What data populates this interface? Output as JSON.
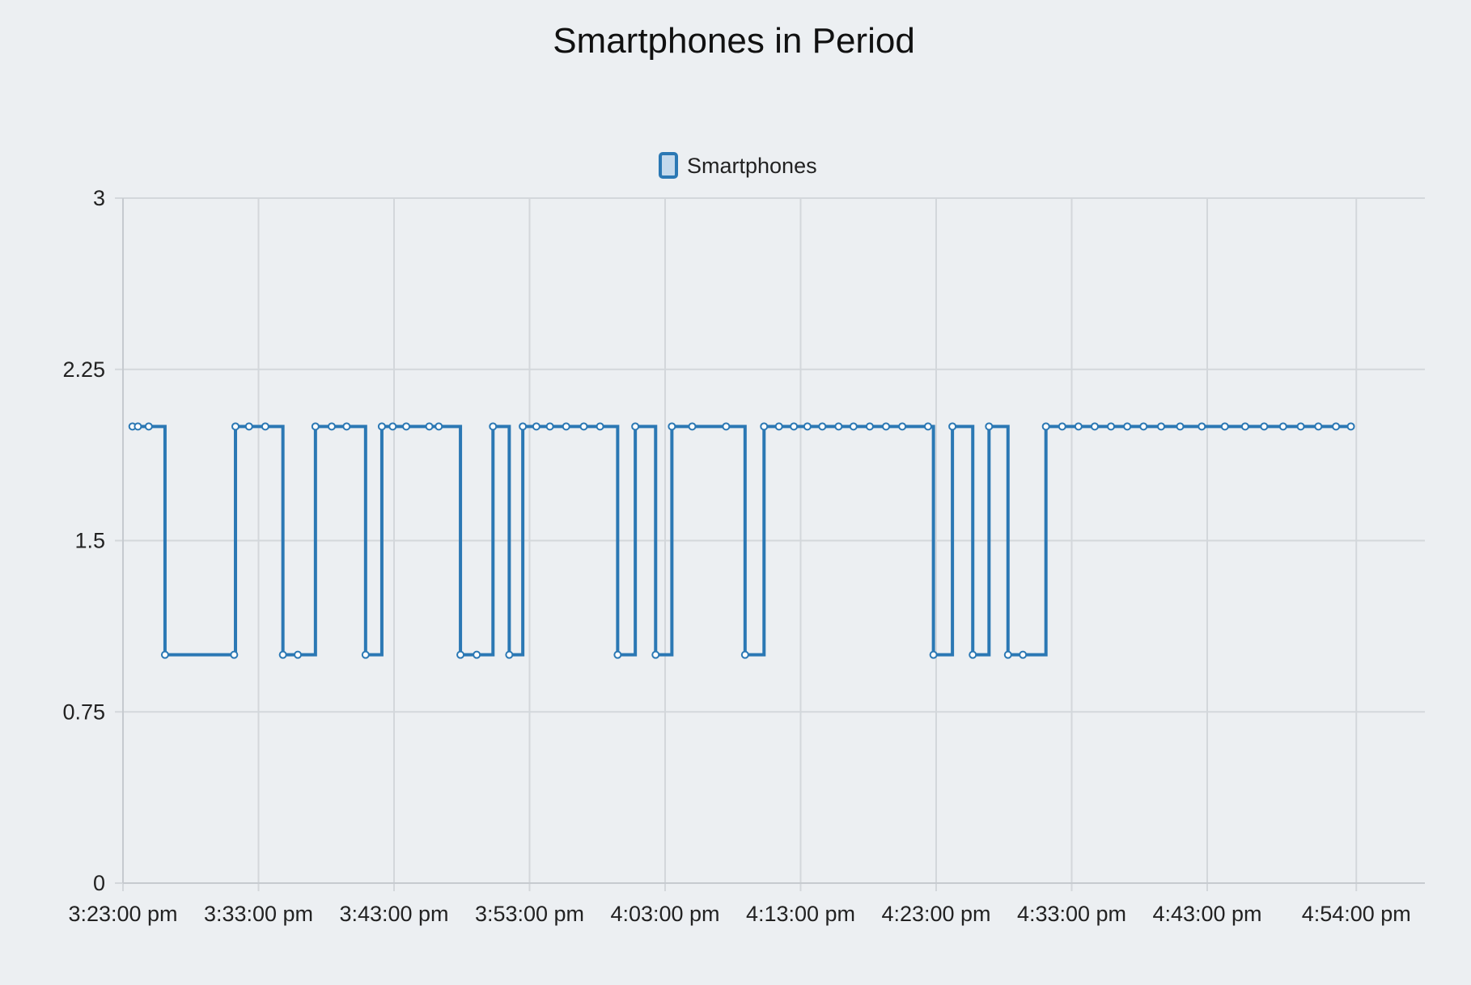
{
  "chart_data": {
    "type": "line",
    "step": true,
    "title": "Smartphones in Period",
    "xlabel": "",
    "ylabel": "",
    "ylim": [
      0,
      3
    ],
    "y_ticks": [
      "0",
      "0.75",
      "1.5",
      "2.25",
      "3"
    ],
    "x_range_minutes": [
      0,
      92
    ],
    "x_ticks": [
      {
        "label": "3:23:00 pm",
        "minute": 0
      },
      {
        "label": "3:33:00 pm",
        "minute": 10
      },
      {
        "label": "3:43:00 pm",
        "minute": 20
      },
      {
        "label": "3:53:00 pm",
        "minute": 30
      },
      {
        "label": "4:03:00 pm",
        "minute": 40
      },
      {
        "label": "4:13:00 pm",
        "minute": 50
      },
      {
        "label": "4:23:00 pm",
        "minute": 60
      },
      {
        "label": "4:33:00 pm",
        "minute": 70
      },
      {
        "label": "4:43:00 pm",
        "minute": 80
      },
      {
        "label": "4:54:00 pm",
        "minute": 91
      }
    ],
    "grid": true,
    "legend": {
      "position": "top-center"
    },
    "colors": {
      "line": "#2b78b4",
      "legend_fill": "#c4d9ec"
    },
    "series": [
      {
        "name": "Smartphones",
        "points": [
          [
            0.7,
            2
          ],
          [
            1.1,
            2
          ],
          [
            1.9,
            2
          ],
          [
            3.1,
            1
          ],
          [
            8.2,
            1
          ],
          [
            8.3,
            2
          ],
          [
            9.3,
            2
          ],
          [
            10.5,
            2
          ],
          [
            11.8,
            1
          ],
          [
            12.9,
            1
          ],
          [
            14.2,
            2
          ],
          [
            15.4,
            2
          ],
          [
            16.5,
            2
          ],
          [
            17.9,
            1
          ],
          [
            19.1,
            2
          ],
          [
            19.9,
            2
          ],
          [
            20.9,
            2
          ],
          [
            22.6,
            2
          ],
          [
            23.3,
            2
          ],
          [
            24.9,
            1
          ],
          [
            26.1,
            1
          ],
          [
            27.3,
            2
          ],
          [
            28.5,
            1
          ],
          [
            29.5,
            2
          ],
          [
            30.5,
            2
          ],
          [
            31.5,
            2
          ],
          [
            32.7,
            2
          ],
          [
            34.0,
            2
          ],
          [
            35.2,
            2
          ],
          [
            36.5,
            1
          ],
          [
            37.8,
            2
          ],
          [
            39.3,
            1
          ],
          [
            40.5,
            2
          ],
          [
            42.0,
            2
          ],
          [
            44.5,
            2
          ],
          [
            45.9,
            1
          ],
          [
            47.3,
            2
          ],
          [
            48.4,
            2
          ],
          [
            49.5,
            2
          ],
          [
            50.5,
            2
          ],
          [
            51.6,
            2
          ],
          [
            52.8,
            2
          ],
          [
            53.9,
            2
          ],
          [
            55.1,
            2
          ],
          [
            56.3,
            2
          ],
          [
            57.5,
            2
          ],
          [
            59.4,
            2
          ],
          [
            59.8,
            1
          ],
          [
            61.2,
            2
          ],
          [
            62.7,
            1
          ],
          [
            63.9,
            2
          ],
          [
            65.3,
            1
          ],
          [
            66.4,
            1
          ],
          [
            68.1,
            2
          ],
          [
            69.3,
            2
          ],
          [
            70.5,
            2
          ],
          [
            71.7,
            2
          ],
          [
            72.9,
            2
          ],
          [
            74.1,
            2
          ],
          [
            75.3,
            2
          ],
          [
            76.6,
            2
          ],
          [
            78.0,
            2
          ],
          [
            79.6,
            2
          ],
          [
            81.3,
            2
          ],
          [
            82.8,
            2
          ],
          [
            84.2,
            2
          ],
          [
            85.6,
            2
          ],
          [
            86.9,
            2
          ],
          [
            88.2,
            2
          ],
          [
            89.5,
            2
          ],
          [
            90.6,
            2
          ]
        ]
      }
    ]
  }
}
